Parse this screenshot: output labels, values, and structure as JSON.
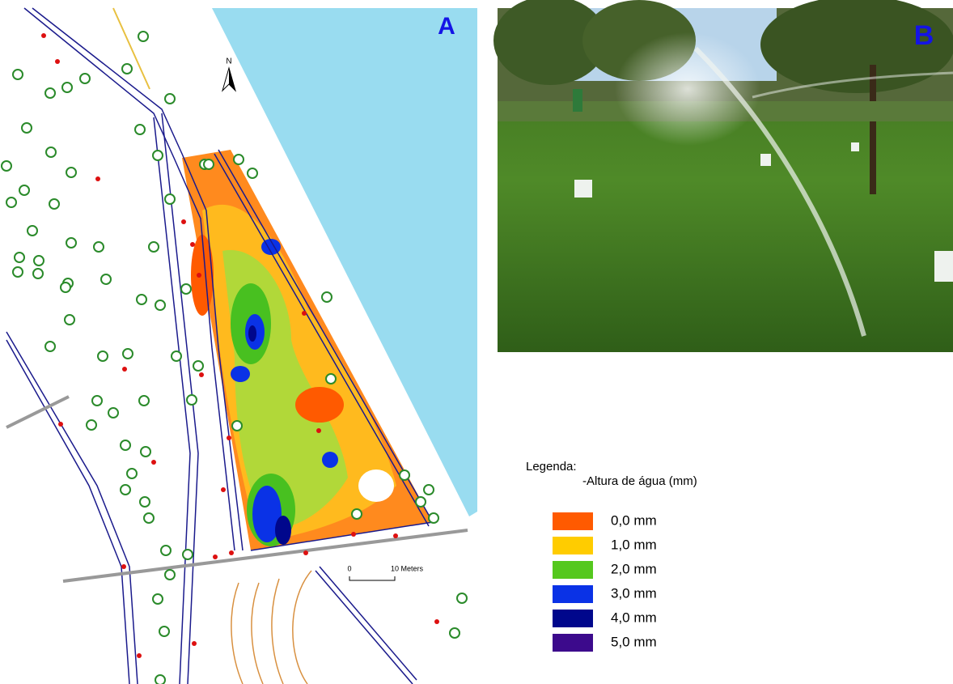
{
  "panel_a": {
    "label": "A",
    "north": "N",
    "scale_start": "0",
    "scale_end": "10 Meters"
  },
  "panel_b": {
    "label": "B"
  },
  "legend": {
    "title": "Legenda:",
    "subtitle": "-Altura de água (mm)",
    "items": [
      {
        "label": "0,0 mm",
        "color": "#ff5a00"
      },
      {
        "label": "1,0 mm",
        "color": "#ffcc00"
      },
      {
        "label": "2,0 mm",
        "color": "#55c81e"
      },
      {
        "label": "3,0 mm",
        "color": "#0a32e6"
      },
      {
        "label": "4,0 mm",
        "color": "#00078c"
      },
      {
        "label": "5,0 mm",
        "color": "#3c0a8c"
      }
    ]
  }
}
